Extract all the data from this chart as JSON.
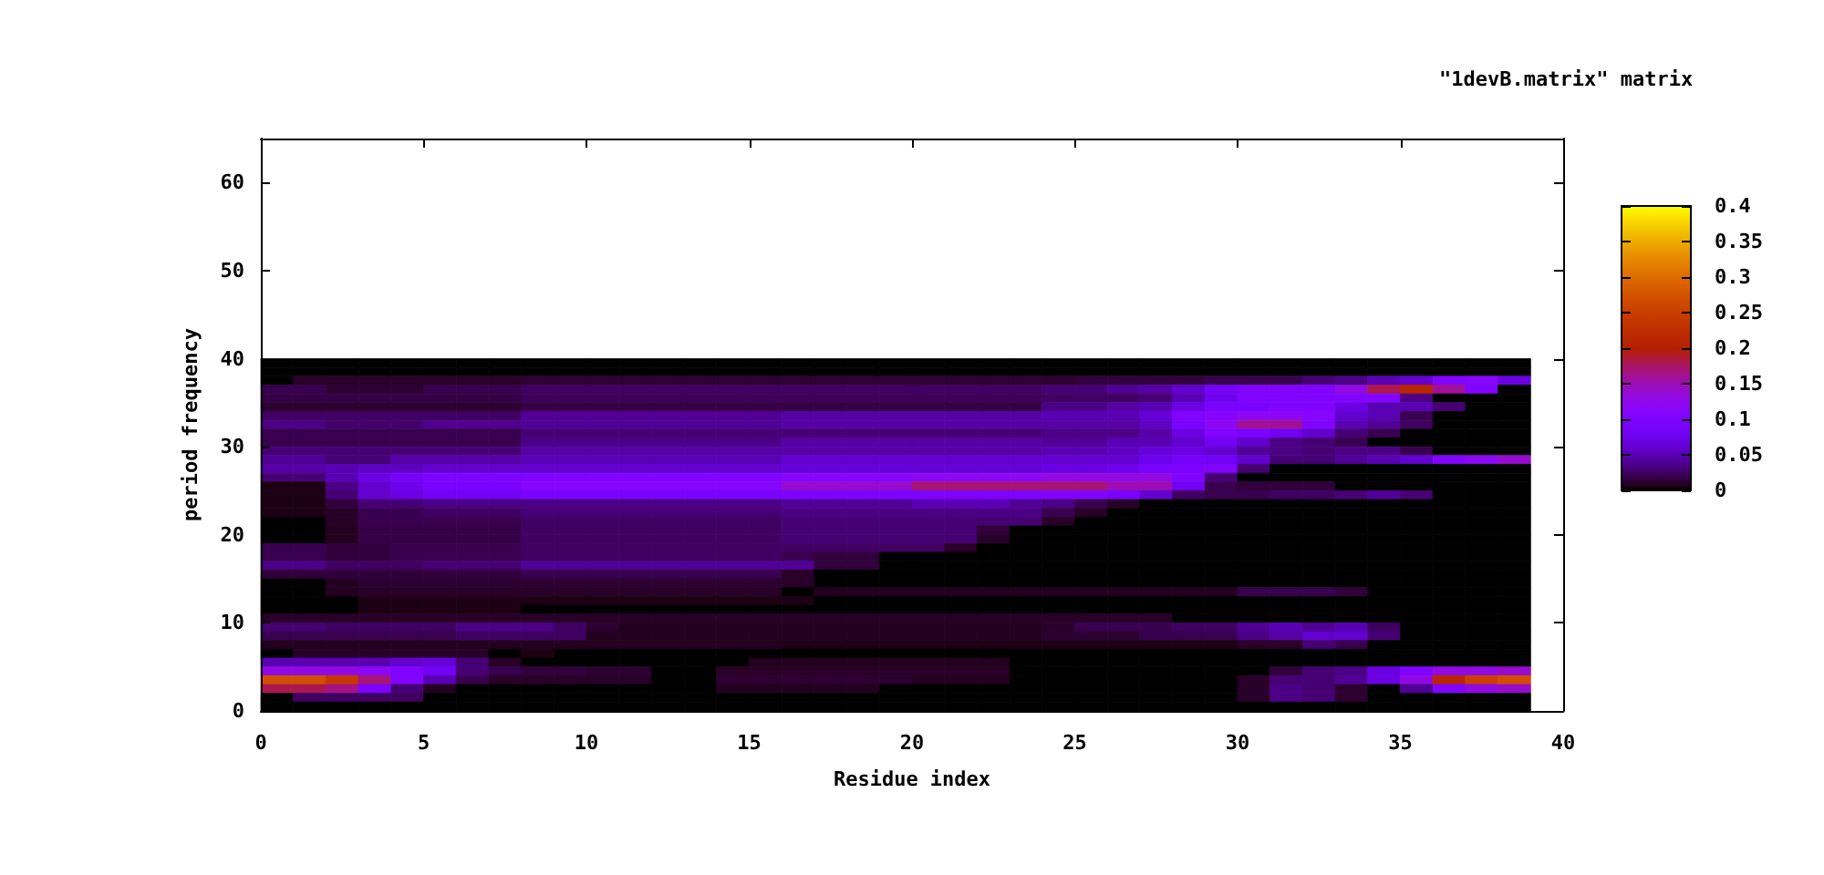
{
  "chart_data": {
    "type": "heatmap",
    "title": "\"1devB.matrix\" matrix",
    "xlabel": "Residue index",
    "ylabel": "period frequency",
    "x": [
      0.5,
      1.5,
      2.5,
      3.5,
      4.5,
      5.5,
      6.5,
      7.5,
      8.5,
      9.5,
      10.5,
      11.5,
      12.5,
      13.5,
      14.5,
      15.5,
      16.5,
      17.5,
      18.5,
      19.5,
      20.5,
      21.5,
      22.5,
      23.5,
      24.5,
      25.5,
      26.5,
      27.5,
      28.5,
      29.5,
      30.5,
      31.5,
      32.5,
      33.5,
      34.5,
      35.5,
      36.5,
      37.5,
      38.5
    ],
    "y": [
      39.5,
      38.5,
      37.5,
      36.5,
      35.5,
      34.5,
      33.5,
      32.5,
      31.5,
      30.5,
      29.5,
      28.5,
      27.5,
      26.5,
      25.5,
      24.5,
      23.5,
      22.5,
      21.5,
      20.5,
      19.5,
      18.5,
      17.5,
      16.5,
      15.5,
      14.5,
      13.5,
      12.5,
      11.5,
      10.5,
      9.5,
      8.5,
      7.5,
      6.5,
      5.5,
      4.5,
      3.5,
      2.5,
      1.5,
      0.5
    ],
    "xlim": [
      0,
      40
    ],
    "xticks": [
      0,
      5,
      10,
      15,
      20,
      25,
      30,
      35,
      40
    ],
    "ylim": [
      0,
      65
    ],
    "yticks": [
      0,
      10,
      20,
      30,
      40,
      50,
      60
    ],
    "clim": [
      0,
      0.4
    ],
    "cticks": [
      0,
      0.05,
      0.1,
      0.15,
      0.2,
      0.25,
      0.3,
      0.35,
      0.4
    ],
    "cells": [
      [
        0,
        0,
        0,
        0,
        0,
        0,
        0,
        0,
        0,
        0,
        0,
        0,
        0,
        0,
        0,
        0,
        0,
        0,
        0,
        0,
        0,
        0,
        0,
        0,
        0,
        0,
        0,
        0,
        0,
        0,
        0,
        0,
        0,
        0,
        0,
        0,
        0,
        0,
        0
      ],
      [
        0,
        0,
        0,
        0,
        0,
        0,
        0,
        0,
        0,
        0,
        0,
        0,
        0,
        0,
        0,
        0,
        0,
        0,
        0,
        0,
        0,
        0,
        0,
        0,
        0,
        0,
        0,
        0,
        0,
        0,
        0,
        0,
        0,
        0,
        0,
        0,
        0,
        0,
        0
      ],
      [
        0,
        0.01,
        0.01,
        0.01,
        0.01,
        0.01,
        0.01,
        0.01,
        0.012,
        0.012,
        0.012,
        0.012,
        0.012,
        0.012,
        0.012,
        0.012,
        0.012,
        0.012,
        0.012,
        0.012,
        0.012,
        0.012,
        0.012,
        0.012,
        0.012,
        0.015,
        0.015,
        0.015,
        0.015,
        0.02,
        0.02,
        0.02,
        0.03,
        0.035,
        0.05,
        0.06,
        0.1,
        0.11,
        0.07
      ],
      [
        0.02,
        0.02,
        0.013,
        0.013,
        0.013,
        0.02,
        0.02,
        0.02,
        0.025,
        0.025,
        0.025,
        0.025,
        0.025,
        0.025,
        0.025,
        0.025,
        0.025,
        0.025,
        0.025,
        0.025,
        0.025,
        0.025,
        0.025,
        0.025,
        0.03,
        0.03,
        0.04,
        0.045,
        0.06,
        0.085,
        0.1,
        0.1,
        0.1,
        0.13,
        0.18,
        0.21,
        0.16,
        0.1,
        0
      ],
      [
        0.018,
        0.018,
        0.018,
        0.018,
        0.018,
        0.018,
        0.018,
        0.018,
        0.022,
        0.022,
        0.022,
        0.022,
        0.022,
        0.022,
        0.022,
        0.022,
        0.022,
        0.022,
        0.022,
        0.022,
        0.022,
        0.022,
        0.022,
        0.022,
        0.025,
        0.025,
        0.025,
        0.03,
        0.05,
        0.075,
        0.1,
        0.1,
        0.1,
        0.1,
        0.1,
        0.035,
        0,
        0,
        0
      ],
      [
        0.012,
        0.012,
        0.012,
        0.012,
        0.012,
        0.012,
        0.012,
        0.012,
        0.018,
        0.018,
        0.018,
        0.018,
        0.018,
        0.018,
        0.018,
        0.018,
        0.018,
        0.018,
        0.018,
        0.018,
        0.018,
        0.018,
        0.018,
        0.018,
        0.035,
        0.035,
        0.045,
        0.05,
        0.07,
        0.09,
        0.09,
        0.1,
        0.1,
        0.07,
        0.05,
        0.05,
        0.03,
        0,
        0
      ],
      [
        0.025,
        0.025,
        0.025,
        0.025,
        0.025,
        0.025,
        0.025,
        0.025,
        0.04,
        0.04,
        0.04,
        0.04,
        0.04,
        0.04,
        0.04,
        0.04,
        0.045,
        0.045,
        0.045,
        0.045,
        0.045,
        0.045,
        0.045,
        0.045,
        0.05,
        0.05,
        0.05,
        0.065,
        0.1,
        0.11,
        0.12,
        0.12,
        0.11,
        0.06,
        0.05,
        0.02,
        0,
        0,
        0
      ],
      [
        0.035,
        0.035,
        0.028,
        0.028,
        0.028,
        0.038,
        0.038,
        0.038,
        0.04,
        0.04,
        0.04,
        0.04,
        0.04,
        0.04,
        0.04,
        0.04,
        0.045,
        0.045,
        0.045,
        0.045,
        0.045,
        0.045,
        0.045,
        0.045,
        0.045,
        0.045,
        0.045,
        0.055,
        0.09,
        0.12,
        0.16,
        0.16,
        0.1,
        0.05,
        0.04,
        0.025,
        0,
        0,
        0
      ],
      [
        0.02,
        0.02,
        0.02,
        0.02,
        0.02,
        0.02,
        0.02,
        0.02,
        0.03,
        0.03,
        0.03,
        0.03,
        0.03,
        0.03,
        0.03,
        0.03,
        0.03,
        0.03,
        0.03,
        0.03,
        0.03,
        0.03,
        0.03,
        0.03,
        0.035,
        0.035,
        0.035,
        0.045,
        0.07,
        0.1,
        0.09,
        0.08,
        0.06,
        0.03,
        0.02,
        0,
        0,
        0,
        0
      ],
      [
        0.02,
        0.02,
        0.02,
        0.02,
        0.02,
        0.02,
        0.02,
        0.02,
        0.035,
        0.035,
        0.035,
        0.035,
        0.035,
        0.035,
        0.035,
        0.035,
        0.045,
        0.045,
        0.045,
        0.045,
        0.045,
        0.045,
        0.045,
        0.045,
        0.04,
        0.04,
        0.05,
        0.05,
        0.06,
        0.08,
        0.06,
        0.035,
        0.03,
        0.02,
        0,
        0,
        0,
        0,
        0
      ],
      [
        0.03,
        0.03,
        0.03,
        0.03,
        0.03,
        0.03,
        0.03,
        0.03,
        0.045,
        0.045,
        0.045,
        0.045,
        0.045,
        0.045,
        0.045,
        0.045,
        0.045,
        0.045,
        0.045,
        0.045,
        0.045,
        0.045,
        0.045,
        0.045,
        0.05,
        0.05,
        0.055,
        0.065,
        0.07,
        0.06,
        0.04,
        0.035,
        0.03,
        0.035,
        0.035,
        0.02,
        0,
        0,
        0
      ],
      [
        0.04,
        0.04,
        0.03,
        0.03,
        0.045,
        0.045,
        0.045,
        0.045,
        0.05,
        0.05,
        0.05,
        0.05,
        0.05,
        0.05,
        0.05,
        0.05,
        0.06,
        0.06,
        0.06,
        0.06,
        0.06,
        0.06,
        0.06,
        0.06,
        0.06,
        0.06,
        0.06,
        0.075,
        0.085,
        0.08,
        0.06,
        0.03,
        0.03,
        0.04,
        0.05,
        0.06,
        0.1,
        0.12,
        0.14
      ],
      [
        0.045,
        0.045,
        0.05,
        0.055,
        0.055,
        0.06,
        0.06,
        0.06,
        0.06,
        0.06,
        0.06,
        0.06,
        0.06,
        0.06,
        0.06,
        0.06,
        0.065,
        0.065,
        0.065,
        0.065,
        0.065,
        0.065,
        0.065,
        0.065,
        0.07,
        0.07,
        0.075,
        0.09,
        0.095,
        0.1,
        0.03,
        0,
        0,
        0,
        0,
        0,
        0,
        0,
        0
      ],
      [
        0.03,
        0.03,
        0.05,
        0.07,
        0.085,
        0.095,
        0.095,
        0.095,
        0.1,
        0.1,
        0.1,
        0.1,
        0.1,
        0.1,
        0.1,
        0.1,
        0.11,
        0.11,
        0.11,
        0.11,
        0.12,
        0.12,
        0.12,
        0.12,
        0.13,
        0.13,
        0.13,
        0.13,
        0.1,
        0.03,
        0,
        0,
        0,
        0,
        0,
        0,
        0,
        0,
        0
      ],
      [
        0.005,
        0.005,
        0.035,
        0.06,
        0.075,
        0.09,
        0.09,
        0.09,
        0.11,
        0.11,
        0.11,
        0.11,
        0.11,
        0.11,
        0.11,
        0.11,
        0.14,
        0.14,
        0.14,
        0.14,
        0.17,
        0.17,
        0.17,
        0.17,
        0.17,
        0.17,
        0.15,
        0.15,
        0.08,
        0.02,
        0.015,
        0.015,
        0.015,
        0,
        0,
        0,
        0,
        0,
        0
      ],
      [
        0.005,
        0.005,
        0.03,
        0.06,
        0.07,
        0.08,
        0.08,
        0.08,
        0.09,
        0.09,
        0.09,
        0.09,
        0.09,
        0.09,
        0.09,
        0.09,
        0.095,
        0.095,
        0.095,
        0.095,
        0.095,
        0.095,
        0.095,
        0.095,
        0.1,
        0.1,
        0.09,
        0.06,
        0.025,
        0.02,
        0.02,
        0.025,
        0.025,
        0.03,
        0.04,
        0.03,
        0,
        0,
        0
      ],
      [
        0.005,
        0.005,
        0.015,
        0.03,
        0.03,
        0.035,
        0.035,
        0.035,
        0.035,
        0.035,
        0.035,
        0.035,
        0.035,
        0.035,
        0.035,
        0.035,
        0.04,
        0.04,
        0.04,
        0.04,
        0.05,
        0.05,
        0.05,
        0.04,
        0.035,
        0.02,
        0.01,
        0,
        0,
        0,
        0,
        0,
        0,
        0,
        0,
        0,
        0,
        0,
        0
      ],
      [
        0.005,
        0.005,
        0.01,
        0.02,
        0.02,
        0.025,
        0.025,
        0.025,
        0.03,
        0.03,
        0.03,
        0.03,
        0.03,
        0.03,
        0.03,
        0.03,
        0.035,
        0.035,
        0.035,
        0.035,
        0.035,
        0.035,
        0.035,
        0.035,
        0.02,
        0.01,
        0,
        0,
        0,
        0,
        0,
        0,
        0,
        0,
        0,
        0,
        0,
        0,
        0
      ],
      [
        0,
        0,
        0.01,
        0.02,
        0.02,
        0.02,
        0.02,
        0.02,
        0.025,
        0.025,
        0.025,
        0.025,
        0.025,
        0.025,
        0.025,
        0.025,
        0.03,
        0.03,
        0.03,
        0.03,
        0.03,
        0.03,
        0.03,
        0.03,
        0.01,
        0,
        0,
        0,
        0,
        0,
        0,
        0,
        0,
        0,
        0,
        0,
        0,
        0,
        0
      ],
      [
        0,
        0,
        0.008,
        0.018,
        0.018,
        0.018,
        0.018,
        0.018,
        0.025,
        0.025,
        0.025,
        0.025,
        0.025,
        0.025,
        0.025,
        0.025,
        0.03,
        0.03,
        0.03,
        0.03,
        0.03,
        0.03,
        0.015,
        0,
        0,
        0,
        0,
        0,
        0,
        0,
        0,
        0,
        0,
        0,
        0,
        0,
        0,
        0,
        0
      ],
      [
        0,
        0,
        0.008,
        0.018,
        0.018,
        0.018,
        0.018,
        0.018,
        0.025,
        0.025,
        0.025,
        0.025,
        0.025,
        0.025,
        0.025,
        0.025,
        0.03,
        0.03,
        0.03,
        0.03,
        0.03,
        0.03,
        0.01,
        0,
        0,
        0,
        0,
        0,
        0,
        0,
        0,
        0,
        0,
        0,
        0,
        0,
        0,
        0,
        0
      ],
      [
        0.02,
        0.02,
        0.015,
        0.015,
        0.02,
        0.02,
        0.02,
        0.02,
        0.025,
        0.025,
        0.025,
        0.025,
        0.025,
        0.025,
        0.025,
        0.025,
        0.025,
        0.025,
        0.025,
        0.025,
        0.025,
        0.01,
        0,
        0,
        0,
        0,
        0,
        0,
        0,
        0,
        0,
        0,
        0,
        0,
        0,
        0,
        0,
        0,
        0
      ],
      [
        0.02,
        0.02,
        0.015,
        0.015,
        0.02,
        0.02,
        0.02,
        0.02,
        0.025,
        0.025,
        0.025,
        0.025,
        0.025,
        0.025,
        0.025,
        0.025,
        0.02,
        0.015,
        0.015,
        0,
        0,
        0,
        0,
        0,
        0,
        0,
        0,
        0,
        0,
        0,
        0,
        0,
        0,
        0,
        0,
        0,
        0,
        0,
        0
      ],
      [
        0.035,
        0.035,
        0.025,
        0.025,
        0.025,
        0.03,
        0.03,
        0.03,
        0.04,
        0.04,
        0.04,
        0.04,
        0.04,
        0.04,
        0.04,
        0.04,
        0.04,
        0.015,
        0.015,
        0,
        0,
        0,
        0,
        0,
        0,
        0,
        0,
        0,
        0,
        0,
        0,
        0,
        0,
        0,
        0,
        0,
        0,
        0,
        0
      ],
      [
        0.015,
        0.015,
        0.015,
        0.015,
        0.015,
        0.015,
        0.015,
        0.015,
        0.02,
        0.02,
        0.02,
        0.02,
        0.02,
        0.02,
        0.02,
        0.02,
        0.01,
        0,
        0,
        0,
        0,
        0,
        0,
        0,
        0,
        0,
        0,
        0,
        0,
        0,
        0,
        0,
        0,
        0,
        0,
        0,
        0,
        0,
        0
      ],
      [
        0,
        0,
        0.008,
        0.012,
        0.012,
        0.012,
        0.012,
        0.012,
        0.012,
        0.012,
        0.012,
        0.012,
        0.012,
        0.012,
        0.012,
        0.012,
        0.01,
        0,
        0,
        0,
        0,
        0,
        0,
        0,
        0,
        0,
        0,
        0,
        0,
        0,
        0,
        0,
        0,
        0,
        0,
        0,
        0,
        0,
        0
      ],
      [
        0,
        0,
        0.008,
        0.01,
        0.01,
        0.01,
        0.01,
        0.01,
        0.01,
        0.01,
        0.01,
        0.01,
        0.01,
        0.01,
        0.01,
        0.01,
        0,
        0.008,
        0.008,
        0.008,
        0.008,
        0.008,
        0.008,
        0.008,
        0.008,
        0.008,
        0.008,
        0.008,
        0.008,
        0.008,
        0.02,
        0.02,
        0.02,
        0.015,
        0,
        0,
        0,
        0,
        0
      ],
      [
        0,
        0,
        0,
        0.005,
        0.005,
        0.005,
        0.005,
        0.005,
        0.005,
        0.005,
        0.005,
        0.005,
        0.005,
        0.005,
        0.005,
        0.005,
        0.005,
        0,
        0,
        0,
        0,
        0,
        0,
        0,
        0,
        0,
        0,
        0,
        0,
        0,
        0,
        0,
        0,
        0,
        0,
        0,
        0,
        0,
        0
      ],
      [
        0,
        0,
        0,
        0.005,
        0.005,
        0.005,
        0.005,
        0.005,
        0,
        0,
        0,
        0,
        0,
        0,
        0,
        0,
        0,
        0,
        0,
        0,
        0,
        0,
        0,
        0,
        0,
        0,
        0,
        0,
        0,
        0,
        0,
        0,
        0,
        0,
        0,
        0,
        0,
        0,
        0
      ],
      [
        0.01,
        0.01,
        0.01,
        0.01,
        0.01,
        0.01,
        0.01,
        0.01,
        0.01,
        0.01,
        0.01,
        0.01,
        0.01,
        0.01,
        0.01,
        0.01,
        0.01,
        0.01,
        0.01,
        0.01,
        0.01,
        0.01,
        0.01,
        0.01,
        0.01,
        0.01,
        0.01,
        0.01,
        0,
        0,
        0,
        0,
        0,
        0,
        0,
        0,
        0,
        0,
        0
      ],
      [
        0.03,
        0.03,
        0.025,
        0.025,
        0.025,
        0.025,
        0.035,
        0.035,
        0.035,
        0.025,
        0.012,
        0.008,
        0.008,
        0.008,
        0.008,
        0.008,
        0.008,
        0.008,
        0.008,
        0.008,
        0.008,
        0.008,
        0.008,
        0.008,
        0.01,
        0.02,
        0.02,
        0.02,
        0.025,
        0.025,
        0.04,
        0.05,
        0.04,
        0.05,
        0.025,
        0,
        0,
        0,
        0
      ],
      [
        0.02,
        0.02,
        0.02,
        0.02,
        0.02,
        0.02,
        0.025,
        0.025,
        0.025,
        0.025,
        0.008,
        0.008,
        0.008,
        0.008,
        0.008,
        0.008,
        0.008,
        0.008,
        0.008,
        0.008,
        0.008,
        0.008,
        0.008,
        0.008,
        0.012,
        0.012,
        0.012,
        0.02,
        0.02,
        0.02,
        0.035,
        0.045,
        0.06,
        0.06,
        0.03,
        0,
        0,
        0,
        0
      ],
      [
        0.008,
        0.008,
        0.008,
        0.008,
        0.008,
        0.008,
        0.008,
        0.008,
        0.008,
        0.008,
        0.008,
        0.008,
        0.008,
        0.008,
        0.008,
        0.008,
        0.005,
        0.005,
        0.005,
        0.005,
        0.005,
        0.005,
        0.005,
        0.005,
        0.005,
        0.005,
        0.005,
        0.005,
        0.005,
        0.005,
        0.01,
        0.01,
        0.03,
        0.02,
        0,
        0,
        0,
        0,
        0
      ],
      [
        0,
        0.01,
        0.01,
        0.01,
        0.01,
        0.01,
        0.01,
        0,
        0.005,
        0,
        0,
        0,
        0,
        0,
        0,
        0,
        0,
        0,
        0,
        0,
        0,
        0,
        0,
        0,
        0,
        0,
        0,
        0,
        0,
        0,
        0,
        0,
        0,
        0,
        0,
        0,
        0,
        0,
        0
      ],
      [
        0.05,
        0.05,
        0.05,
        0.05,
        0.06,
        0.065,
        0.03,
        0.01,
        0,
        0,
        0,
        0,
        0,
        0,
        0,
        0.008,
        0.008,
        0.008,
        0.008,
        0.008,
        0.008,
        0.008,
        0.008,
        0,
        0,
        0,
        0,
        0,
        0,
        0,
        0,
        0,
        0,
        0,
        0,
        0,
        0,
        0,
        0
      ],
      [
        0.13,
        0.13,
        0.13,
        0.12,
        0.1,
        0.08,
        0.03,
        0.02,
        0.015,
        0.015,
        0.012,
        0.012,
        0,
        0,
        0.01,
        0.01,
        0.01,
        0.01,
        0.01,
        0.01,
        0.01,
        0.01,
        0.01,
        0,
        0,
        0,
        0,
        0,
        0,
        0,
        0,
        0.015,
        0.03,
        0.035,
        0.07,
        0.1,
        0.13,
        0.13,
        0.14
      ],
      [
        0.27,
        0.27,
        0.24,
        0.17,
        0.1,
        0.05,
        0.02,
        0.01,
        0.01,
        0.01,
        0.01,
        0.01,
        0,
        0,
        0.012,
        0.012,
        0.012,
        0.012,
        0.012,
        0.012,
        0.008,
        0.008,
        0.008,
        0,
        0,
        0,
        0,
        0,
        0,
        0,
        0.01,
        0.03,
        0.03,
        0.04,
        0.07,
        0.13,
        0.21,
        0.25,
        0.27
      ],
      [
        0.18,
        0.18,
        0.165,
        0.095,
        0.03,
        0.008,
        0,
        0,
        0,
        0,
        0,
        0,
        0,
        0,
        0.008,
        0.008,
        0.008,
        0.008,
        0.008,
        0,
        0,
        0,
        0,
        0,
        0,
        0,
        0,
        0,
        0,
        0,
        0.01,
        0.035,
        0.03,
        0.012,
        0,
        0.04,
        0.1,
        0.13,
        0.14
      ],
      [
        0,
        0.025,
        0.025,
        0.025,
        0.025,
        0,
        0,
        0,
        0,
        0,
        0,
        0,
        0,
        0,
        0,
        0,
        0,
        0,
        0,
        0,
        0,
        0,
        0,
        0,
        0,
        0,
        0,
        0,
        0,
        0,
        0.01,
        0.035,
        0.03,
        0.012,
        0,
        0,
        0,
        0,
        0
      ],
      [
        0,
        0,
        0,
        0,
        0,
        0,
        0,
        0,
        0,
        0,
        0,
        0,
        0,
        0,
        0,
        0,
        0,
        0,
        0,
        0,
        0,
        0,
        0,
        0,
        0,
        0,
        0,
        0,
        0,
        0,
        0,
        0,
        0,
        0,
        0,
        0,
        0,
        0,
        0
      ]
    ]
  }
}
